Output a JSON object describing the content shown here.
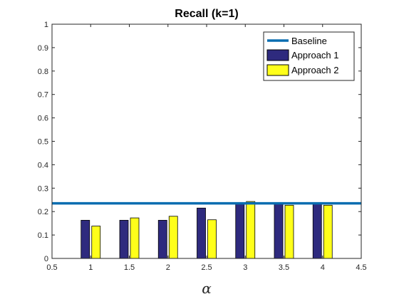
{
  "chart_data": {
    "type": "bar",
    "title": "Recall (k=1)",
    "xlabel": "α",
    "ylabel": "",
    "xlim": [
      0.5,
      4.5
    ],
    "ylim": [
      0,
      1
    ],
    "xticks": [
      0.5,
      1,
      1.5,
      2,
      2.5,
      3,
      3.5,
      4,
      4.5
    ],
    "xtick_labels": [
      "0.5",
      "1",
      "1.5",
      "2",
      "2.5",
      "3",
      "3.5",
      "4",
      "4.5"
    ],
    "yticks": [
      0,
      0.1,
      0.2,
      0.3,
      0.4,
      0.5,
      0.6,
      0.7,
      0.8,
      0.9,
      1
    ],
    "ytick_labels": [
      "0",
      "0.1",
      "0.2",
      "0.3",
      "0.4",
      "0.5",
      "0.6",
      "0.7",
      "0.8",
      "0.9",
      "1"
    ],
    "grid": false,
    "legend_position": "top-right",
    "categories": [
      1,
      1.5,
      2,
      2.5,
      3,
      3.5,
      4
    ],
    "series": [
      {
        "name": "Approach 1",
        "color": "#2e2a7e",
        "values": [
          0.163,
          0.163,
          0.163,
          0.215,
          0.233,
          0.233,
          0.233
        ]
      },
      {
        "name": "Approach 2",
        "color": "#ffff1a",
        "values": [
          0.138,
          0.173,
          0.18,
          0.165,
          0.243,
          0.227,
          0.227
        ]
      }
    ],
    "baseline": {
      "name": "Baseline",
      "color": "#0a6db0",
      "value": 0.235
    }
  }
}
